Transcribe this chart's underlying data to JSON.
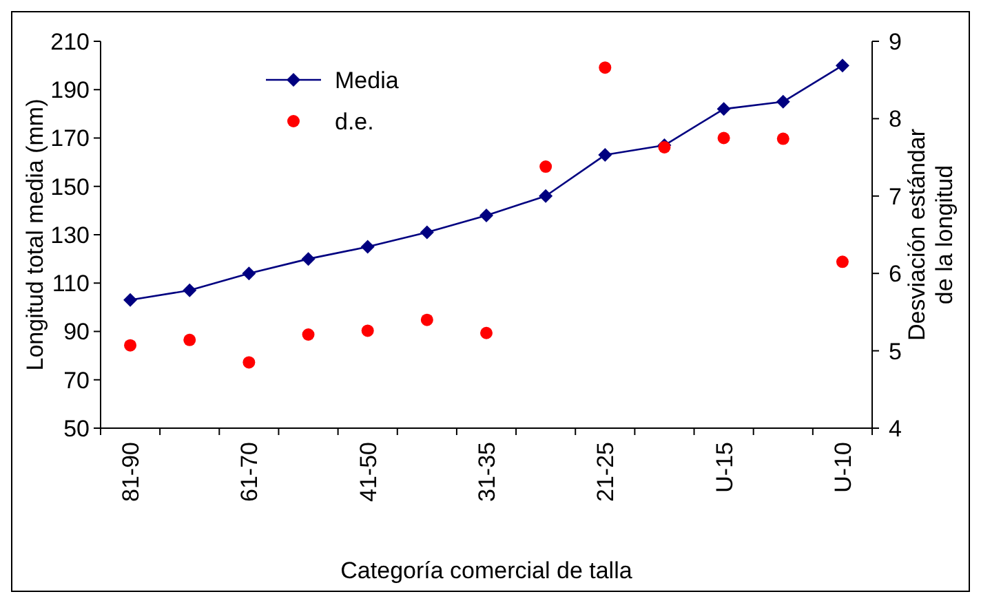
{
  "chart_data": {
    "type": "line",
    "xlabel": "Categoría comercial de talla",
    "ylabel": "Longitud total media (mm)",
    "y2label": "Desviación estándar\nde la longitud",
    "categories": [
      "81-90",
      null,
      "61-70",
      null,
      "41-50",
      null,
      "31-35",
      null,
      "21-25",
      null,
      "U-15",
      null,
      "U-10"
    ],
    "series": [
      {
        "name": "Media",
        "color": "#000080",
        "marker": "diamond",
        "values": [
          103,
          107,
          114,
          120,
          125,
          131,
          138,
          146,
          163,
          167,
          182,
          185,
          200
        ]
      },
      {
        "name": "d.e.",
        "type": "scatter",
        "axis": "y2",
        "color": "#ff0000",
        "marker": "circle",
        "values": [
          5.07,
          5.14,
          4.85,
          5.21,
          5.26,
          5.4,
          5.23,
          7.38,
          8.66,
          7.63,
          7.75,
          7.74,
          6.15
        ]
      }
    ],
    "ylim": [
      50,
      210
    ],
    "yticks": [
      50,
      70,
      90,
      110,
      130,
      150,
      170,
      190,
      210
    ],
    "y2lim": [
      4,
      9
    ],
    "y2ticks": [
      4,
      5,
      6,
      7,
      8,
      9
    ],
    "legend": "top left",
    "grid": false
  }
}
